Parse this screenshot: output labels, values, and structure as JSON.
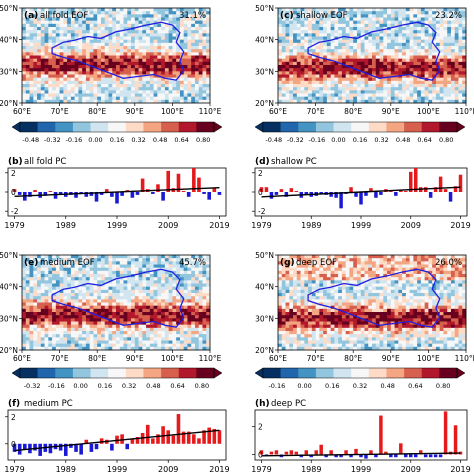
{
  "figure": {
    "colors": {
      "colormap": [
        "#053061",
        "#2166ac",
        "#4393c3",
        "#92c5de",
        "#d1e5f0",
        "#f7f7f7",
        "#fddbc7",
        "#f4a582",
        "#d6604d",
        "#b2182b",
        "#67001f"
      ],
      "plateau_outline": "#1f1fe0",
      "positive_bar": "#e41a1c",
      "negative_bar": "#1a1ad6",
      "trend_line": "#000000"
    }
  },
  "chart_data": [
    {
      "type": "heatmap",
      "panel": "a",
      "title": "all fold EOF",
      "variance": "31.1%",
      "x_ticks": [
        "60°E",
        "70°E",
        "80°E",
        "90°E",
        "100°E",
        "110°E"
      ],
      "y_ticks": [
        "20°N",
        "30°N",
        "40°N",
        "50°N"
      ],
      "xlim": [
        60,
        110
      ],
      "ylim": [
        20,
        50
      ],
      "band_center_lat": 32,
      "band_peak": 0.8,
      "colorbar_ticks": [
        "-0.48",
        "-0.32",
        "-0.16",
        "0.00",
        "0.16",
        "0.32",
        "0.48",
        "0.64",
        "0.80"
      ]
    },
    {
      "type": "heatmap",
      "panel": "c",
      "title": "shallow EOF",
      "variance": "23.2%",
      "x_ticks": [
        "60°E",
        "70°E",
        "80°E",
        "90°E",
        "100°E",
        "110°E"
      ],
      "y_ticks": [
        "20°N",
        "30°N",
        "40°N",
        "50°N"
      ],
      "xlim": [
        60,
        110
      ],
      "ylim": [
        20,
        50
      ],
      "band_center_lat": 31,
      "band_peak": 0.8,
      "colorbar_ticks": [
        "-0.48",
        "-0.32",
        "-0.16",
        "0.00",
        "0.16",
        "0.32",
        "0.48",
        "0.64",
        "0.80"
      ]
    },
    {
      "type": "bar",
      "panel": "b",
      "title": "all fold PC",
      "x_ticks": [
        "1979",
        "1989",
        "1999",
        "2009",
        "2019"
      ],
      "y_ticks": [
        "-2",
        "0",
        "2"
      ],
      "ylim": [
        -2.5,
        2.5
      ],
      "years": [
        1979,
        1980,
        1981,
        1982,
        1983,
        1984,
        1985,
        1986,
        1987,
        1988,
        1989,
        1990,
        1991,
        1992,
        1993,
        1994,
        1995,
        1996,
        1997,
        1998,
        1999,
        2000,
        2001,
        2002,
        2003,
        2004,
        2005,
        2006,
        2007,
        2008,
        2009,
        2010,
        2011,
        2012,
        2013,
        2014,
        2015,
        2016,
        2017,
        2018,
        2019
      ],
      "values": [
        0.3,
        -0.3,
        -0.9,
        -0.5,
        0.2,
        -0.6,
        -0.4,
        0.1,
        -0.7,
        -0.2,
        -0.5,
        -0.3,
        -0.6,
        -0.1,
        -0.5,
        -0.4,
        -1.0,
        -0.3,
        0.3,
        -0.5,
        -1.2,
        -0.4,
        0.2,
        -0.6,
        -0.3,
        1.4,
        0.3,
        -0.2,
        0.8,
        -0.9,
        2.2,
        0.4,
        1.9,
        0.1,
        -0.5,
        2.5,
        1.5,
        -0.2,
        -0.8,
        0.4,
        -0.3
      ],
      "trend": [
        -0.45,
        0.45
      ]
    },
    {
      "type": "bar",
      "panel": "d",
      "title": "shallow PC",
      "x_ticks": [
        "1979",
        "1989",
        "1999",
        "2009",
        "2019"
      ],
      "y_ticks": [
        "-2",
        "0",
        "2"
      ],
      "ylim": [
        -2.5,
        2.5
      ],
      "years": [
        1979,
        1980,
        1981,
        1982,
        1983,
        1984,
        1985,
        1986,
        1987,
        1988,
        1989,
        1990,
        1991,
        1992,
        1993,
        1994,
        1995,
        1996,
        1997,
        1998,
        1999,
        2000,
        2001,
        2002,
        2003,
        2004,
        2005,
        2006,
        2007,
        2008,
        2009,
        2010,
        2011,
        2012,
        2013,
        2014,
        2015,
        2016,
        2017,
        2018,
        2019
      ],
      "values": [
        0.5,
        0.5,
        -0.7,
        -0.3,
        0.3,
        -0.5,
        0.4,
        0.1,
        -0.6,
        -0.3,
        -0.5,
        -0.4,
        -0.2,
        -0.3,
        -0.5,
        -0.6,
        -1.7,
        -0.2,
        0.5,
        -0.5,
        -1.3,
        -0.4,
        0.4,
        -0.6,
        -0.3,
        0.3,
        0.2,
        -0.4,
        0.2,
        0.1,
        2.1,
        2.5,
        0.5,
        0.5,
        -0.6,
        0.5,
        1.6,
        0.3,
        -1.0,
        0.6,
        1.8
      ],
      "trend": [
        -0.5,
        0.5
      ]
    },
    {
      "type": "heatmap",
      "panel": "e",
      "title": "medium EOF",
      "variance": "45.7%",
      "x_ticks": [
        "60°E",
        "70°E",
        "80°E",
        "90°E",
        "100°E",
        "110°E"
      ],
      "y_ticks": [
        "20°N",
        "30°N",
        "40°N",
        "50°N"
      ],
      "xlim": [
        60,
        110
      ],
      "ylim": [
        20,
        50
      ],
      "band_center_lat": 31,
      "band_peak": 0.8,
      "colorbar_ticks": [
        "-0.32",
        "-0.16",
        "0.00",
        "0.16",
        "0.32",
        "0.48",
        "0.64",
        "0.80"
      ]
    },
    {
      "type": "heatmap",
      "panel": "g",
      "title": "deep EOF",
      "variance": "26.0%",
      "x_ticks": [
        "60°E",
        "70°E",
        "80°E",
        "90°E",
        "100°E",
        "110°E"
      ],
      "y_ticks": [
        "20°N",
        "30°N",
        "40°N",
        "50°N"
      ],
      "xlim": [
        60,
        110
      ],
      "ylim": [
        20,
        50
      ],
      "band_center_lat": 30,
      "band_peak": 0.8,
      "colorbar_ticks": [
        "-0.16",
        "0.00",
        "0.16",
        "0.32",
        "0.48",
        "0.64",
        "0.80"
      ]
    },
    {
      "type": "bar",
      "panel": "f",
      "title": "medium PC",
      "x_ticks": [
        "1979",
        "1989",
        "1999",
        "2009",
        "2019"
      ],
      "y_ticks": [
        "0",
        "2"
      ],
      "ylim": [
        -1.2,
        2.5
      ],
      "years": [
        1979,
        1980,
        1981,
        1982,
        1983,
        1984,
        1985,
        1986,
        1987,
        1988,
        1989,
        1990,
        1991,
        1992,
        1993,
        1994,
        1995,
        1996,
        1997,
        1998,
        1999,
        2000,
        2001,
        2002,
        2003,
        2004,
        2005,
        2006,
        2007,
        2008,
        2009,
        2010,
        2011,
        2012,
        2013,
        2014,
        2015,
        2016,
        2017,
        2018,
        2019
      ],
      "values": [
        -0.6,
        -0.8,
        -0.4,
        -0.7,
        -0.5,
        -0.9,
        -0.6,
        -0.7,
        -0.4,
        -0.5,
        -0.9,
        -0.3,
        -0.6,
        -0.8,
        0.3,
        -0.6,
        -0.4,
        0.4,
        0.3,
        -0.5,
        0.6,
        0.7,
        -0.4,
        0.4,
        0.5,
        0.8,
        1.4,
        0.4,
        0.7,
        1.3,
        1.0,
        0.6,
        2.2,
        0.9,
        0.9,
        0.7,
        0.4,
        1.0,
        1.2,
        1.1,
        1.0
      ],
      "trend": [
        -0.5,
        1.0
      ]
    },
    {
      "type": "bar",
      "panel": "h",
      "title": "deep PC",
      "x_ticks": [
        "1979",
        "1989",
        "1999",
        "2009",
        "2019"
      ],
      "y_ticks": [
        "0",
        "2"
      ],
      "ylim": [
        -0.4,
        3.2
      ],
      "years": [
        1979,
        1980,
        1981,
        1982,
        1983,
        1984,
        1985,
        1986,
        1987,
        1988,
        1989,
        1990,
        1991,
        1992,
        1993,
        1994,
        1995,
        1996,
        1997,
        1998,
        1999,
        2000,
        2001,
        2002,
        2003,
        2004,
        2005,
        2006,
        2007,
        2008,
        2009,
        2010,
        2011,
        2012,
        2013,
        2014,
        2015,
        2016,
        2017,
        2018,
        2019
      ],
      "values": [
        0.3,
        -0.1,
        0.2,
        0.3,
        -0.2,
        0.2,
        0.3,
        0.2,
        -0.2,
        0.3,
        -0.2,
        0.3,
        0.7,
        -0.2,
        0.3,
        -0.2,
        -0.2,
        0.3,
        -0.2,
        0.4,
        -0.2,
        -0.3,
        0.3,
        -0.2,
        2.8,
        0.2,
        -0.2,
        -0.2,
        0.8,
        -0.2,
        -0.2,
        -0.2,
        0.3,
        -0.2,
        -0.2,
        -0.2,
        -0.2,
        3.1,
        0.2,
        2.1,
        0.2
      ],
      "trend": [
        -0.1,
        0.1
      ]
    }
  ]
}
